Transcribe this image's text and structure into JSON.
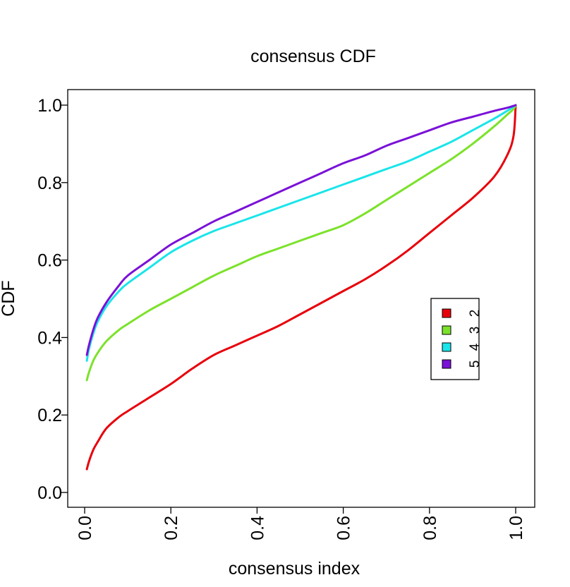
{
  "chart_data": {
    "type": "line",
    "title": "consensus CDF",
    "xlabel": "consensus index",
    "ylabel": "CDF",
    "xlim": [
      0,
      1
    ],
    "ylim": [
      0,
      1
    ],
    "x_ticks": [
      "0.0",
      "0.2",
      "0.4",
      "0.6",
      "0.8",
      "1.0"
    ],
    "y_ticks": [
      "0.0",
      "0.2",
      "0.4",
      "0.6",
      "0.8",
      "1.0"
    ],
    "x_tick_values": [
      0,
      0.2,
      0.4,
      0.6,
      0.8,
      1.0
    ],
    "y_tick_values": [
      0,
      0.2,
      0.4,
      0.6,
      0.8,
      1.0
    ],
    "legend_position": "right",
    "x": [
      0.005,
      0.01,
      0.02,
      0.03,
      0.05,
      0.08,
      0.1,
      0.15,
      0.2,
      0.25,
      0.3,
      0.35,
      0.4,
      0.45,
      0.5,
      0.55,
      0.6,
      0.65,
      0.7,
      0.75,
      0.8,
      0.85,
      0.9,
      0.95,
      0.98,
      0.995,
      1.0
    ],
    "series": [
      {
        "name": "2",
        "color": "#e8000b",
        "values": [
          0.06,
          0.08,
          0.11,
          0.13,
          0.165,
          0.195,
          0.21,
          0.245,
          0.28,
          0.32,
          0.355,
          0.38,
          0.405,
          0.43,
          0.46,
          0.49,
          0.52,
          0.55,
          0.585,
          0.625,
          0.67,
          0.715,
          0.76,
          0.815,
          0.87,
          0.92,
          1.0
        ]
      },
      {
        "name": "3",
        "color": "#7be22a",
        "values": [
          0.29,
          0.31,
          0.34,
          0.36,
          0.39,
          0.42,
          0.435,
          0.47,
          0.5,
          0.53,
          0.56,
          0.585,
          0.61,
          0.63,
          0.65,
          0.67,
          0.69,
          0.72,
          0.755,
          0.79,
          0.825,
          0.86,
          0.9,
          0.945,
          0.975,
          0.99,
          1.0
        ]
      },
      {
        "name": "4",
        "color": "#19e5ea",
        "values": [
          0.34,
          0.37,
          0.41,
          0.44,
          0.48,
          0.52,
          0.54,
          0.58,
          0.62,
          0.65,
          0.675,
          0.695,
          0.715,
          0.735,
          0.755,
          0.775,
          0.795,
          0.815,
          0.835,
          0.855,
          0.88,
          0.905,
          0.935,
          0.965,
          0.985,
          0.996,
          1.0
        ]
      },
      {
        "name": "5",
        "color": "#7a11d8",
        "values": [
          0.355,
          0.38,
          0.42,
          0.45,
          0.49,
          0.535,
          0.56,
          0.6,
          0.64,
          0.67,
          0.7,
          0.725,
          0.75,
          0.775,
          0.8,
          0.825,
          0.85,
          0.87,
          0.895,
          0.915,
          0.935,
          0.955,
          0.97,
          0.985,
          0.993,
          0.998,
          1.0
        ]
      }
    ]
  }
}
